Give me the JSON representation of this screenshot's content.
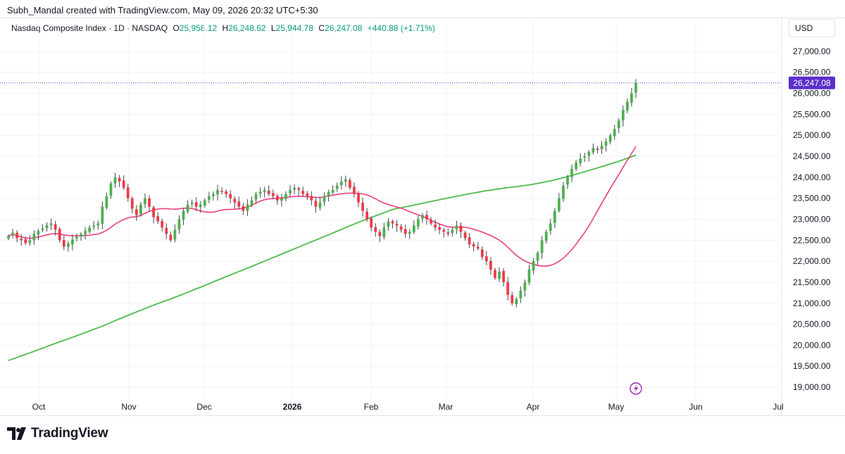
{
  "header": {
    "attribution": "Subh_Mandal created with TradingView.com, May 09, 2026 20:32 UTC+5:30"
  },
  "legend": {
    "symbol": "Nasdaq Composite Index · 1D · NASDAQ",
    "o_label": "O",
    "o_value": "25,958.12",
    "h_label": "H",
    "h_value": "26,248.62",
    "l_label": "L",
    "l_value": "25,944.78",
    "c_label": "C",
    "c_value": "26,247.08",
    "change": "+440.88 (+1.71%)"
  },
  "currency": "USD",
  "last_price_label": "26,247.08",
  "logo_text": "TradingView",
  "colors": {
    "up": "#4caf50",
    "down": "#f23645",
    "ma_short": "#ec407a",
    "ma_long": "#4cbb4c",
    "price_tag": "#5b2fc9",
    "lightning": "#9c27b0"
  },
  "chart_data": {
    "type": "candlestick",
    "y_axis_ticks": [
      "19,000.00",
      "19,500.00",
      "20,000.00",
      "20,500.00",
      "21,000.00",
      "21,500.00",
      "22,000.00",
      "22,500.00",
      "23,000.00",
      "23,500.00",
      "24,000.00",
      "24,500.00",
      "25,000.00",
      "25,500.00",
      "26,000.00",
      "26,500.00",
      "27,000.00"
    ],
    "x_axis_ticks": [
      "Oct",
      "Nov",
      "Dec",
      "2026",
      "Feb",
      "Mar",
      "Apr",
      "May",
      "Jun",
      "Jul"
    ],
    "ylim": [
      18800,
      27300
    ],
    "last_close": 26247.08,
    "close": [
      22600,
      22680,
      22550,
      22500,
      22430,
      22500,
      22650,
      22720,
      22780,
      22860,
      22900,
      22750,
      22500,
      22350,
      22420,
      22520,
      22580,
      22650,
      22720,
      22800,
      22850,
      22900,
      23300,
      23550,
      23850,
      24000,
      23900,
      23750,
      23500,
      23250,
      23100,
      23350,
      23500,
      23300,
      23050,
      22950,
      22800,
      22650,
      22500,
      22750,
      23000,
      23200,
      23350,
      23400,
      23300,
      23350,
      23450,
      23550,
      23600,
      23700,
      23650,
      23600,
      23500,
      23400,
      23300,
      23200,
      23350,
      23450,
      23600,
      23650,
      23700,
      23600,
      23550,
      23450,
      23500,
      23600,
      23700,
      23750,
      23700,
      23600,
      23550,
      23450,
      23300,
      23400,
      23550,
      23650,
      23700,
      23800,
      23900,
      23950,
      23750,
      23600,
      23400,
      23200,
      23000,
      22800,
      22700,
      22600,
      22800,
      22950,
      22900,
      22850,
      22750,
      22650,
      22700,
      22850,
      23000,
      23100,
      23000,
      22900,
      22800,
      22750,
      22700,
      22650,
      22750,
      22850,
      22700,
      22550,
      22400,
      22350,
      22300,
      22100,
      22000,
      21800,
      21600,
      21750,
      21500,
      21200,
      21000,
      21100,
      21300,
      21500,
      21800,
      22000,
      22200,
      22500,
      22700,
      22900,
      23200,
      23500,
      23800,
      24000,
      24200,
      24350,
      24450,
      24500,
      24600,
      24700,
      24650,
      24750,
      24850,
      25000,
      25150,
      25350,
      25600,
      25800,
      26000,
      26247
    ],
    "ma_short_label": "",
    "ma_long_label": ""
  }
}
